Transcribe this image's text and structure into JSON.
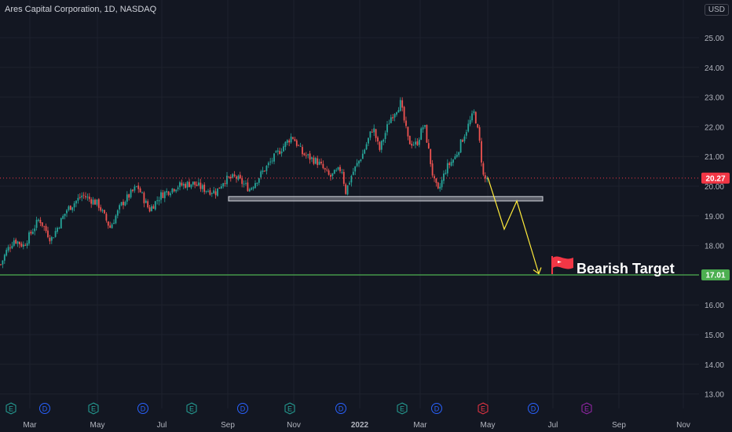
{
  "header": {
    "title": "Ares Capital Corporation, 1D, NASDAQ",
    "currency": "USD"
  },
  "annotation": {
    "label": "Bearish Target"
  },
  "price_tags": {
    "last": "20.27",
    "target": "17.01"
  },
  "colors": {
    "background": "#131722",
    "up": "#26a69a",
    "down": "#ef5350",
    "target_line": "#4caf50",
    "projection": "#ffeb3b",
    "flag": "#f23645",
    "support_box": "#787b86",
    "last_price": "#f23645"
  },
  "chart_data": {
    "type": "candlestick",
    "title": "Ares Capital Corporation, 1D, NASDAQ",
    "ylim": [
      12.7,
      25.55
    ],
    "y_ticks": [
      13.0,
      14.0,
      15.0,
      16.0,
      17.0,
      18.0,
      19.0,
      20.0,
      21.0,
      22.0,
      23.0,
      24.0,
      25.0
    ],
    "x_ticks": [
      "Mar",
      "May",
      "Jul",
      "Sep",
      "Nov",
      "2022",
      "Mar",
      "May",
      "Jul",
      "Sep",
      "Nov"
    ],
    "grid": true,
    "last_price": 20.27,
    "target_price": 17.01,
    "support_zone": [
      19.5,
      19.65
    ],
    "price_path": [
      [
        0,
        17.3
      ],
      [
        8,
        17.8
      ],
      [
        18,
        18.2
      ],
      [
        30,
        18.0
      ],
      [
        50,
        18.9
      ],
      [
        65,
        18.2
      ],
      [
        85,
        19.2
      ],
      [
        105,
        19.7
      ],
      [
        125,
        19.4
      ],
      [
        140,
        18.6
      ],
      [
        155,
        19.4
      ],
      [
        175,
        20.0
      ],
      [
        190,
        19.2
      ],
      [
        205,
        19.7
      ],
      [
        225,
        20.0
      ],
      [
        245,
        20.1
      ],
      [
        260,
        19.9
      ],
      [
        275,
        19.8
      ],
      [
        285,
        20.2
      ],
      [
        300,
        20.3
      ],
      [
        318,
        19.9
      ],
      [
        335,
        20.5
      ],
      [
        350,
        21.0
      ],
      [
        372,
        21.7
      ],
      [
        385,
        21.1
      ],
      [
        405,
        20.8
      ],
      [
        420,
        20.3
      ],
      [
        435,
        20.6
      ],
      [
        440,
        19.8
      ],
      [
        448,
        20.4
      ],
      [
        462,
        21.1
      ],
      [
        475,
        22.0
      ],
      [
        483,
        21.2
      ],
      [
        497,
        22.3
      ],
      [
        510,
        22.8
      ],
      [
        520,
        21.5
      ],
      [
        530,
        21.4
      ],
      [
        540,
        22.1
      ],
      [
        552,
        20.2
      ],
      [
        558,
        19.8
      ],
      [
        568,
        20.6
      ],
      [
        580,
        21.0
      ],
      [
        592,
        21.8
      ],
      [
        604,
        22.5
      ],
      [
        610,
        21.6
      ],
      [
        616,
        20.2
      ],
      [
        621,
        20.3
      ]
    ],
    "projection": [
      [
        621,
        20.3
      ],
      [
        642,
        18.55
      ],
      [
        658,
        19.5
      ],
      [
        686,
        17.05
      ]
    ],
    "events": [
      {
        "x": 14,
        "type": "E"
      },
      {
        "x": 57,
        "type": "D"
      },
      {
        "x": 119,
        "type": "E"
      },
      {
        "x": 182,
        "type": "D"
      },
      {
        "x": 244,
        "type": "E"
      },
      {
        "x": 309,
        "type": "D"
      },
      {
        "x": 369,
        "type": "E"
      },
      {
        "x": 434,
        "type": "D"
      },
      {
        "x": 512,
        "type": "E"
      },
      {
        "x": 556,
        "type": "D"
      },
      {
        "x": 615,
        "type": "E",
        "state": "upcoming"
      },
      {
        "x": 679,
        "type": "D"
      },
      {
        "x": 747,
        "type": "E",
        "state": "future"
      }
    ]
  }
}
